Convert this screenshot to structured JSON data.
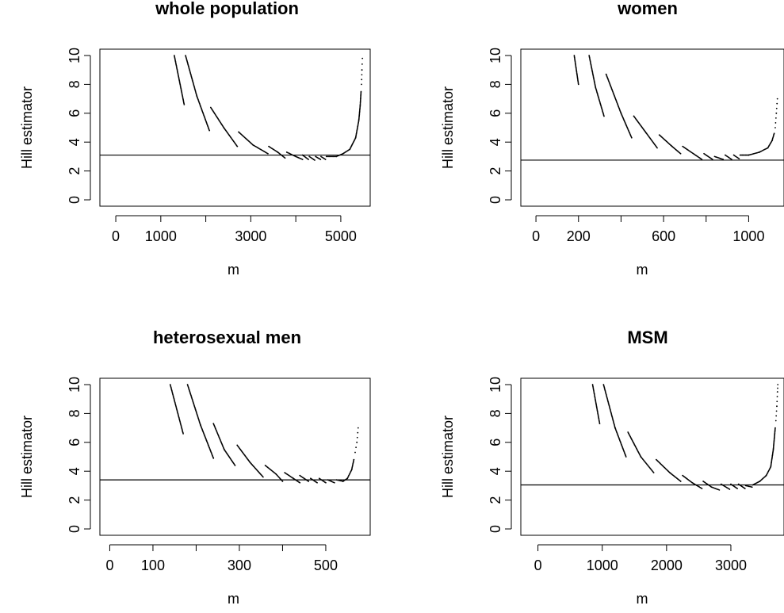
{
  "chart_data": [
    {
      "type": "scatter",
      "title": "whole population",
      "xlabel": "m",
      "ylabel": "Hill estimator",
      "xlim": [
        -230,
        5530
      ],
      "ylim": [
        0,
        10
      ],
      "x_ticks": [
        0,
        1000,
        3000,
        5000
      ],
      "x_tick_marks": [
        0,
        1000,
        2000,
        3000,
        4000,
        5000
      ],
      "y_ticks": [
        0,
        2,
        4,
        6,
        8,
        10
      ],
      "reference_line_y": 3.1,
      "segments": [
        [
          [
            1300,
            10.0
          ],
          [
            1520,
            6.6
          ]
        ],
        [
          [
            1550,
            10.0
          ],
          [
            1800,
            7.2
          ],
          [
            2080,
            4.8
          ]
        ],
        [
          [
            2110,
            6.4
          ],
          [
            2400,
            5.0
          ],
          [
            2700,
            3.7
          ]
        ],
        [
          [
            2730,
            4.7
          ],
          [
            3050,
            3.8
          ],
          [
            3380,
            3.2
          ]
        ],
        [
          [
            3400,
            3.7
          ],
          [
            3600,
            3.3
          ],
          [
            3760,
            2.9
          ]
        ],
        [
          [
            3800,
            3.3
          ],
          [
            4000,
            3.0
          ],
          [
            4150,
            2.8
          ]
        ],
        [
          [
            4150,
            3.1
          ],
          [
            4280,
            2.8
          ]
        ],
        [
          [
            4300,
            3.0
          ],
          [
            4420,
            2.75
          ]
        ],
        [
          [
            4440,
            3.0
          ],
          [
            4550,
            2.8
          ]
        ],
        [
          [
            4560,
            3.0
          ],
          [
            4660,
            2.8
          ]
        ],
        [
          [
            4680,
            3.0
          ],
          [
            4900,
            3.0
          ],
          [
            5050,
            3.2
          ],
          [
            5200,
            3.5
          ],
          [
            5330,
            4.3
          ],
          [
            5400,
            5.5
          ],
          [
            5430,
            6.5
          ],
          [
            5450,
            7.5
          ]
        ],
        [
          [
            5460,
            8.0
          ],
          [
            5470,
            9.0
          ],
          [
            5480,
            9.8
          ]
        ]
      ]
    },
    {
      "type": "scatter",
      "title": "women",
      "xlabel": "m",
      "ylabel": "Hill estimator",
      "xlim": [
        -45,
        1140
      ],
      "ylim": [
        0,
        10
      ],
      "x_ticks": [
        0,
        200,
        600,
        1000
      ],
      "x_tick_marks": [
        0,
        200,
        400,
        600,
        800,
        1000
      ],
      "y_ticks": [
        0,
        2,
        4,
        6,
        8,
        10
      ],
      "reference_line_y": 2.75,
      "segments": [
        [
          [
            180,
            10.0
          ],
          [
            200,
            8.0
          ]
        ],
        [
          [
            250,
            10.0
          ],
          [
            280,
            7.8
          ],
          [
            320,
            5.8
          ]
        ],
        [
          [
            330,
            8.7
          ],
          [
            400,
            6.0
          ],
          [
            450,
            4.3
          ]
        ],
        [
          [
            460,
            5.8
          ],
          [
            520,
            4.6
          ],
          [
            570,
            3.6
          ]
        ],
        [
          [
            580,
            4.5
          ],
          [
            640,
            3.7
          ],
          [
            680,
            3.2
          ]
        ],
        [
          [
            690,
            3.7
          ],
          [
            740,
            3.2
          ],
          [
            780,
            2.8
          ]
        ],
        [
          [
            790,
            3.2
          ],
          [
            830,
            2.8
          ]
        ],
        [
          [
            840,
            3.0
          ],
          [
            880,
            2.8
          ]
        ],
        [
          [
            890,
            3.1
          ],
          [
            920,
            2.8
          ]
        ],
        [
          [
            930,
            3.1
          ],
          [
            955,
            2.85
          ]
        ],
        [
          [
            960,
            3.1
          ],
          [
            1000,
            3.1
          ],
          [
            1050,
            3.3
          ],
          [
            1090,
            3.6
          ],
          [
            1110,
            4.1
          ],
          [
            1120,
            4.6
          ]
        ],
        [
          [
            1125,
            5.0
          ],
          [
            1130,
            6.0
          ],
          [
            1135,
            7.0
          ]
        ]
      ]
    },
    {
      "type": "scatter",
      "title": "heterosexual men",
      "xlabel": "m",
      "ylabel": "Hill estimator",
      "xlim": [
        -10,
        590
      ],
      "ylim": [
        0,
        10
      ],
      "x_ticks": [
        0,
        100,
        300,
        500
      ],
      "x_tick_marks": [
        0,
        100,
        200,
        300,
        400,
        500
      ],
      "y_ticks": [
        0,
        2,
        4,
        6,
        8,
        10
      ],
      "reference_line_y": 3.4,
      "segments": [
        [
          [
            140,
            10.0
          ],
          [
            170,
            6.6
          ]
        ],
        [
          [
            180,
            10.0
          ],
          [
            210,
            7.2
          ],
          [
            240,
            4.9
          ]
        ],
        [
          [
            240,
            7.3
          ],
          [
            265,
            5.5
          ],
          [
            290,
            4.4
          ]
        ],
        [
          [
            295,
            5.8
          ],
          [
            325,
            4.6
          ],
          [
            355,
            3.6
          ]
        ],
        [
          [
            360,
            4.4
          ],
          [
            385,
            3.8
          ],
          [
            400,
            3.3
          ]
        ],
        [
          [
            405,
            3.9
          ],
          [
            425,
            3.5
          ],
          [
            440,
            3.2
          ]
        ],
        [
          [
            440,
            3.7
          ],
          [
            460,
            3.3
          ]
        ],
        [
          [
            465,
            3.5
          ],
          [
            480,
            3.2
          ]
        ],
        [
          [
            485,
            3.5
          ],
          [
            500,
            3.2
          ]
        ],
        [
          [
            505,
            3.4
          ],
          [
            520,
            3.2
          ]
        ],
        [
          [
            525,
            3.4
          ],
          [
            540,
            3.3
          ],
          [
            550,
            3.5
          ],
          [
            560,
            4.1
          ],
          [
            565,
            4.8
          ]
        ],
        [
          [
            568,
            5.3
          ],
          [
            572,
            6.0
          ],
          [
            575,
            7.0
          ]
        ]
      ]
    },
    {
      "type": "scatter",
      "title": "MSM",
      "xlabel": "m",
      "ylabel": "Hill estimator",
      "xlim": [
        -180,
        3740
      ],
      "ylim": [
        0,
        10
      ],
      "x_ticks": [
        0,
        1000,
        2000,
        3000
      ],
      "x_tick_marks": [
        0,
        1000,
        2000,
        3000
      ],
      "y_ticks": [
        0,
        2,
        4,
        6,
        8,
        10
      ],
      "reference_line_y": 3.05,
      "segments": [
        [
          [
            850,
            10.0
          ],
          [
            960,
            7.3
          ]
        ],
        [
          [
            1020,
            10.0
          ],
          [
            1200,
            7.0
          ],
          [
            1370,
            5.0
          ]
        ],
        [
          [
            1400,
            6.7
          ],
          [
            1600,
            5.0
          ],
          [
            1800,
            3.9
          ]
        ],
        [
          [
            1840,
            4.8
          ],
          [
            2050,
            3.9
          ],
          [
            2220,
            3.3
          ]
        ],
        [
          [
            2250,
            3.7
          ],
          [
            2400,
            3.2
          ],
          [
            2550,
            2.8
          ]
        ],
        [
          [
            2570,
            3.3
          ],
          [
            2700,
            2.9
          ],
          [
            2820,
            2.7
          ]
        ],
        [
          [
            2850,
            3.1
          ],
          [
            2980,
            2.75
          ]
        ],
        [
          [
            3000,
            3.1
          ],
          [
            3100,
            2.8
          ]
        ],
        [
          [
            3120,
            3.1
          ],
          [
            3220,
            2.8
          ]
        ],
        [
          [
            3230,
            3.0
          ],
          [
            3330,
            2.9
          ]
        ],
        [
          [
            3340,
            3.05
          ],
          [
            3450,
            3.3
          ],
          [
            3550,
            3.7
          ],
          [
            3620,
            4.3
          ],
          [
            3660,
            5.5
          ],
          [
            3690,
            7.0
          ]
        ],
        [
          [
            3700,
            7.5
          ],
          [
            3715,
            8.5
          ],
          [
            3725,
            9.5
          ],
          [
            3730,
            10.0
          ]
        ]
      ]
    }
  ]
}
